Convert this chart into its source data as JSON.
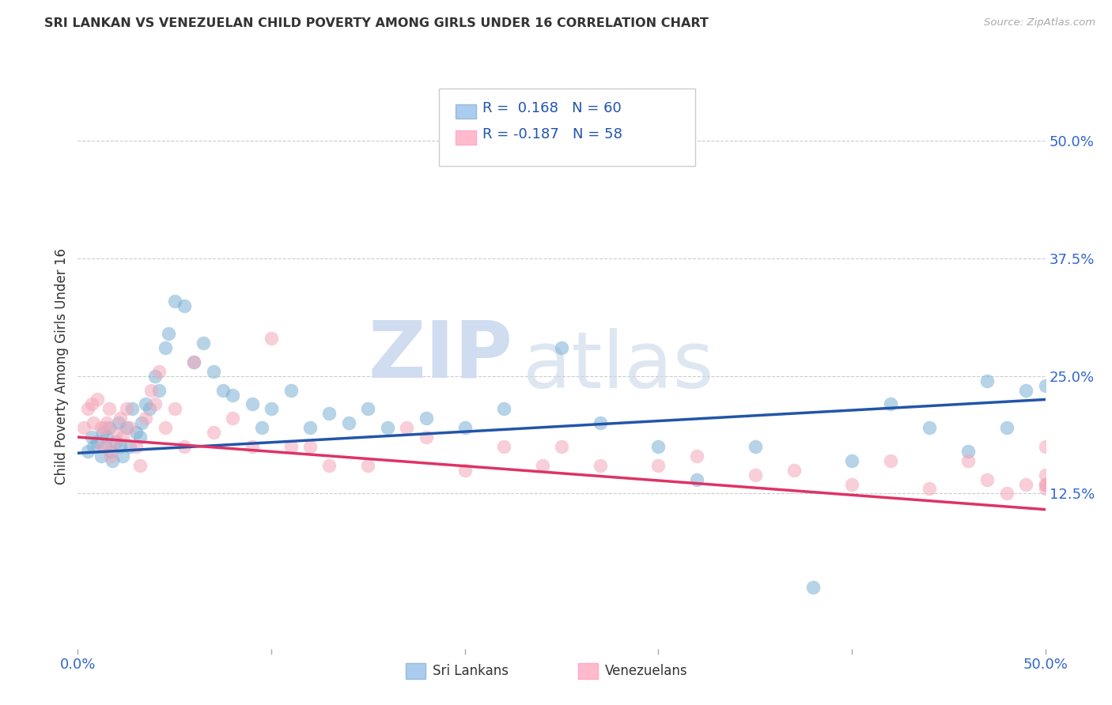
{
  "title": "SRI LANKAN VS VENEZUELAN CHILD POVERTY AMONG GIRLS UNDER 16 CORRELATION CHART",
  "source": "Source: ZipAtlas.com",
  "ylabel": "Child Poverty Among Girls Under 16",
  "ytick_labels": [
    "12.5%",
    "25.0%",
    "37.5%",
    "50.0%"
  ],
  "ytick_values": [
    0.125,
    0.25,
    0.375,
    0.5
  ],
  "xlim": [
    0.0,
    0.5
  ],
  "ylim": [
    -0.04,
    0.56
  ],
  "watermark_zip": "ZIP",
  "watermark_atlas": "atlas",
  "sri_color": "#7BAFD4",
  "ven_color": "#F4A7B9",
  "sri_line_color": "#2255AA",
  "ven_line_color": "#DD3366",
  "background_color": "#FFFFFF",
  "grid_color": "#CCCCCC",
  "title_color": "#333333",
  "legend_value_color": "#2255AA",
  "legend_box_color_sri": "#AACCEE",
  "legend_box_color_ven": "#FFBBCC",
  "sri_label": "Sri Lankans",
  "ven_label": "Venezuelans",
  "sri_x": [
    0.005,
    0.007,
    0.008,
    0.01,
    0.012,
    0.013,
    0.014,
    0.015,
    0.016,
    0.017,
    0.018,
    0.02,
    0.021,
    0.022,
    0.023,
    0.025,
    0.027,
    0.028,
    0.03,
    0.032,
    0.033,
    0.035,
    0.037,
    0.04,
    0.042,
    0.045,
    0.047,
    0.05,
    0.055,
    0.06,
    0.065,
    0.07,
    0.075,
    0.08,
    0.09,
    0.095,
    0.1,
    0.11,
    0.12,
    0.13,
    0.14,
    0.15,
    0.16,
    0.18,
    0.2,
    0.22,
    0.25,
    0.27,
    0.3,
    0.32,
    0.35,
    0.38,
    0.4,
    0.42,
    0.44,
    0.46,
    0.47,
    0.48,
    0.49,
    0.5
  ],
  "sri_y": [
    0.17,
    0.185,
    0.175,
    0.18,
    0.165,
    0.19,
    0.175,
    0.185,
    0.195,
    0.17,
    0.16,
    0.18,
    0.2,
    0.175,
    0.165,
    0.195,
    0.175,
    0.215,
    0.19,
    0.185,
    0.2,
    0.22,
    0.215,
    0.25,
    0.235,
    0.28,
    0.295,
    0.33,
    0.325,
    0.265,
    0.285,
    0.255,
    0.235,
    0.23,
    0.22,
    0.195,
    0.215,
    0.235,
    0.195,
    0.21,
    0.2,
    0.215,
    0.195,
    0.205,
    0.195,
    0.215,
    0.28,
    0.2,
    0.175,
    0.14,
    0.175,
    0.025,
    0.16,
    0.22,
    0.195,
    0.17,
    0.245,
    0.195,
    0.235,
    0.24
  ],
  "ven_x": [
    0.003,
    0.005,
    0.007,
    0.008,
    0.01,
    0.012,
    0.013,
    0.014,
    0.015,
    0.016,
    0.017,
    0.018,
    0.02,
    0.022,
    0.023,
    0.025,
    0.027,
    0.03,
    0.032,
    0.035,
    0.038,
    0.04,
    0.042,
    0.045,
    0.05,
    0.055,
    0.06,
    0.07,
    0.08,
    0.09,
    0.1,
    0.11,
    0.12,
    0.13,
    0.15,
    0.17,
    0.18,
    0.2,
    0.22,
    0.24,
    0.25,
    0.27,
    0.3,
    0.32,
    0.35,
    0.37,
    0.4,
    0.42,
    0.44,
    0.46,
    0.47,
    0.48,
    0.49,
    0.5,
    0.5,
    0.5,
    0.5,
    0.5
  ],
  "ven_y": [
    0.195,
    0.215,
    0.22,
    0.2,
    0.225,
    0.195,
    0.175,
    0.195,
    0.2,
    0.215,
    0.165,
    0.175,
    0.19,
    0.205,
    0.185,
    0.215,
    0.195,
    0.175,
    0.155,
    0.205,
    0.235,
    0.22,
    0.255,
    0.195,
    0.215,
    0.175,
    0.265,
    0.19,
    0.205,
    0.175,
    0.29,
    0.175,
    0.175,
    0.155,
    0.155,
    0.195,
    0.185,
    0.15,
    0.175,
    0.155,
    0.175,
    0.155,
    0.155,
    0.165,
    0.145,
    0.15,
    0.135,
    0.16,
    0.13,
    0.16,
    0.14,
    0.125,
    0.135,
    0.175,
    0.135,
    0.145,
    0.135,
    0.13
  ]
}
